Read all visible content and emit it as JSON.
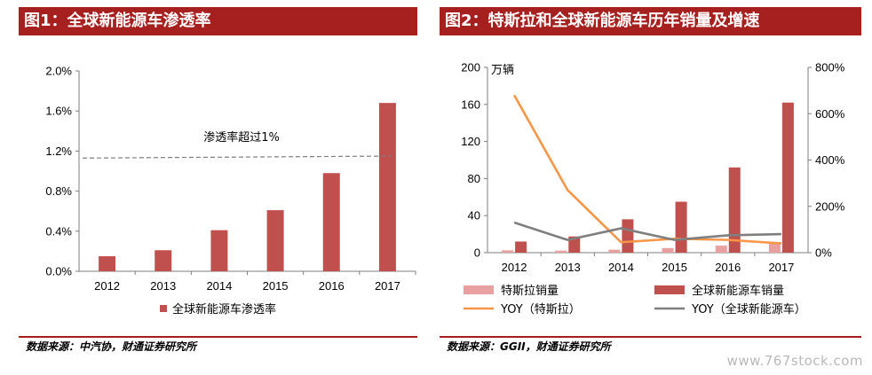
{
  "chart_data": [
    {
      "type": "bar",
      "title": "图1：全球新能源车渗透率",
      "categories": [
        "2012",
        "2013",
        "2014",
        "2015",
        "2016",
        "2017"
      ],
      "series": [
        {
          "name": "全球新能源车渗透率",
          "values": [
            0.15,
            0.21,
            0.41,
            0.61,
            0.98,
            1.68
          ],
          "color": "#c0504d"
        }
      ],
      "ylim": [
        0,
        2.0
      ],
      "yticks": [
        "2.0%",
        "1.6%",
        "1.2%",
        "0.8%",
        "0.4%",
        "0.0%"
      ],
      "annotation": {
        "text": "渗透率超过1%",
        "y_start": 1.13,
        "y_end": 1.15,
        "style": "dashed",
        "color": "#7f7f7f"
      },
      "legend_position": "bottom",
      "source": "数据来源：中汽协，财通证券研究所"
    },
    {
      "type": "bar",
      "title": "图2：特斯拉和全球新能源车历年销量及增速",
      "categories": [
        "2012",
        "2013",
        "2014",
        "2015",
        "2016",
        "2017"
      ],
      "y_unit": "万辆",
      "ylim": [
        0,
        200
      ],
      "yticks": [
        "200",
        "160",
        "120",
        "80",
        "40",
        "0"
      ],
      "y2lim": [
        0,
        800
      ],
      "y2ticks": [
        "800%",
        "600%",
        "400%",
        "200%",
        "0%"
      ],
      "series": [
        {
          "name": "特斯拉销量",
          "kind": "bar",
          "axis": "left",
          "values": [
            2.5,
            2.2,
            3.2,
            5.0,
            7.6,
            10.3
          ],
          "color": "#e8a1a0"
        },
        {
          "name": "全球新能源车销量",
          "kind": "bar",
          "axis": "left",
          "values": [
            12,
            17.5,
            36,
            55,
            92,
            162
          ],
          "color": "#c0504d"
        },
        {
          "name": "YOY（特斯拉）",
          "kind": "line",
          "axis": "right",
          "values": [
            680,
            270,
            45,
            60,
            55,
            40
          ],
          "color": "#f79646"
        },
        {
          "name": "YOY（全球新能源车）",
          "kind": "line",
          "axis": "right",
          "values": [
            130,
            55,
            105,
            55,
            75,
            80
          ],
          "color": "#7f7f7f"
        }
      ],
      "legend_position": "bottom",
      "source": "数据来源：GGII，财通证券研究所"
    }
  ],
  "watermark": "www.767stock.com"
}
